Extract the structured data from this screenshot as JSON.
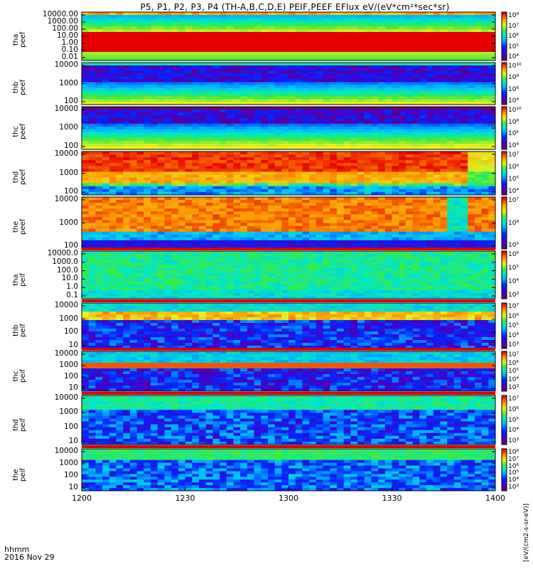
{
  "title": "P5, P1, P2, P3, P4 (TH-A,B,C,D,E) PEIF,PEEF EFlux eV/(eV*cm²*sec*sr)",
  "colorbar_units": "[eV/(cm2-s-sr-eV)]",
  "footer": {
    "format": "hhmm",
    "date": "2016 Nov 29"
  },
  "chart_data": {
    "type": "heatmap",
    "title": "P5, P1, P2, P3, P4 (TH-A,B,C,D,E) PEIF,PEEF EFlux eV/(eV*cm²*sec*sr)",
    "x_tick_labels": [
      "1200",
      "1230",
      "1300",
      "1330",
      "1400"
    ],
    "x_ticks": [
      0,
      30,
      60,
      90,
      120
    ],
    "xlim": [
      0,
      120
    ],
    "xlabel": "",
    "panels": [
      {
        "label": "tha\npeef",
        "y_ticks": [
          "10000.00",
          "1000.00",
          "100.00",
          "10.00",
          "1.00",
          "0.10",
          "0.01"
        ],
        "cbar_ticks": [
          "10⁸",
          "10⁷",
          "10⁶",
          "10⁵",
          "10⁴"
        ],
        "profile": "tha_peef",
        "flag_bar": false
      },
      {
        "label": "thb\npeef",
        "y_ticks": [
          "10000",
          "1000",
          "100"
        ],
        "cbar_ticks": [
          "10¹⁰",
          "10⁸",
          "10⁶",
          "10⁴"
        ],
        "profile": "thb_peef",
        "flag_bar": false
      },
      {
        "label": "thc\npeef",
        "y_ticks": [
          "10000",
          "1000",
          "100"
        ],
        "cbar_ticks": [
          "10¹⁰",
          "10⁸",
          "10⁶",
          "10⁴"
        ],
        "profile": "thc_peef",
        "flag_bar": false
      },
      {
        "label": "thd\npeef",
        "y_ticks": [
          "10000",
          "1000",
          "100"
        ],
        "cbar_ticks": [
          "10⁷",
          "10⁶",
          "10⁵",
          "10⁴"
        ],
        "profile": "thd_peef",
        "flag_bar": false
      },
      {
        "label": "the\npeef",
        "y_ticks": [
          "10000",
          "1000",
          "100"
        ],
        "cbar_ticks": [
          "10⁷",
          "10⁶",
          "10⁵"
        ],
        "profile": "the_peef",
        "flag_bar": false
      },
      {
        "label": "tha\npeif",
        "y_ticks": [
          "10000.0",
          "1000.0",
          "100.0",
          "10.0",
          "1.0",
          "0.1"
        ],
        "cbar_ticks": [
          "10⁶",
          "10⁵",
          "10⁴",
          "10³"
        ],
        "profile": "tha_peif",
        "flag_bar": true
      },
      {
        "label": "thb\npeif",
        "y_ticks": [
          "10000",
          "1000",
          "100",
          "10"
        ],
        "cbar_ticks": [
          "10⁷",
          "10⁶",
          "10⁵",
          "10⁴",
          "10³"
        ],
        "profile": "thb_peif",
        "flag_bar": true
      },
      {
        "label": "thc\npeif",
        "y_ticks": [
          "10000",
          "1000",
          "100",
          "10"
        ],
        "cbar_ticks": [
          "10⁷",
          "10⁶",
          "10⁵",
          "10⁴",
          "10³"
        ],
        "profile": "thc_peif",
        "flag_bar": true
      },
      {
        "label": "thd\npeif",
        "y_ticks": [
          "10000",
          "1000",
          "100",
          "10"
        ],
        "cbar_ticks": [
          "10⁷",
          "10⁶",
          "10⁵",
          "10⁴",
          "10³"
        ],
        "profile": "thd_peif",
        "flag_bar": true
      },
      {
        "label": "the\npeif",
        "y_ticks": [
          "10000",
          "1000",
          "100",
          "10"
        ],
        "cbar_ticks": [
          "10⁸",
          "10⁷",
          "10⁶",
          "10⁵",
          "10⁴",
          "10³"
        ],
        "profile": "the_peif",
        "flag_bar": true
      }
    ],
    "colormap": "rainbow",
    "grid": false,
    "legend": "colorbar-right"
  }
}
